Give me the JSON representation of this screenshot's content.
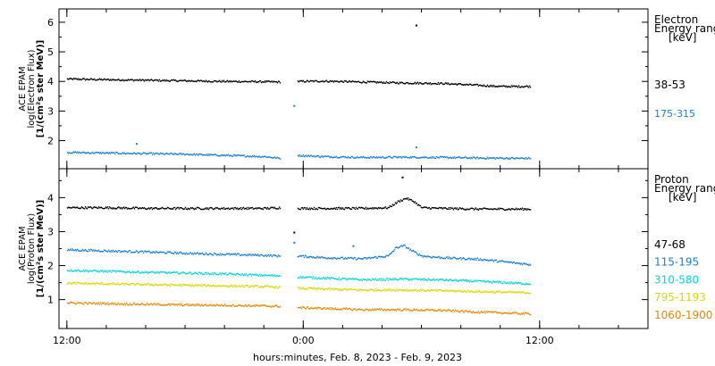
{
  "chart_data": [
    {
      "type": "scatter",
      "panel": "electron",
      "ylabel_lines": [
        "ACE EPAM",
        "log(Electron Flux)",
        "[1/(cm²s ster MeV)]"
      ],
      "yticks": [
        2,
        3,
        4,
        5,
        6
      ],
      "ylim": [
        1.05,
        6.45
      ],
      "legend_header": [
        "Electron",
        "Energy ranges",
        "[keV]"
      ],
      "series": [
        {
          "name": "38-53",
          "color": "#000000",
          "segments": [
            {
              "x": [
                0.0,
                2.0,
                4.0,
                6.0,
                8.0,
                10.0,
                10.8
              ],
              "y": [
                4.1,
                4.08,
                4.06,
                4.04,
                4.02,
                4.01,
                4.0
              ]
            },
            {
              "x": [
                11.7,
                13.0,
                15.0,
                17.0,
                19.0,
                20.0,
                22.0,
                23.5
              ],
              "y": [
                4.02,
                4.03,
                4.0,
                3.97,
                3.95,
                3.92,
                3.85,
                3.85
              ]
            }
          ],
          "outliers": {
            "x": [
              17.7
            ],
            "y": [
              5.92
            ]
          }
        },
        {
          "name": "175-315",
          "color": "#1a7fd4",
          "segments": [
            {
              "x": [
                0.0,
                2.0,
                4.0,
                6.0,
                8.0,
                10.0,
                10.8
              ],
              "y": [
                1.62,
                1.6,
                1.58,
                1.56,
                1.52,
                1.48,
                1.42
              ]
            },
            {
              "x": [
                11.7,
                13.0,
                15.0,
                17.0,
                19.0,
                21.0,
                23.5
              ],
              "y": [
                1.52,
                1.48,
                1.45,
                1.46,
                1.45,
                1.43,
                1.42
              ]
            }
          ],
          "outliers": {
            "x": [
              3.5,
              11.5,
              17.7
            ],
            "y": [
              1.92,
              3.2,
              1.8
            ]
          }
        }
      ]
    },
    {
      "type": "scatter",
      "panel": "proton",
      "ylabel_lines": [
        "ACE EPAM",
        "log(Proton Flux)",
        "[1/(cm²s ster MeV)]"
      ],
      "yticks": [
        1,
        2,
        3,
        4
      ],
      "ylim": [
        0.15,
        4.85
      ],
      "legend_header": [
        "Proton",
        "Energy ranges",
        "[keV]"
      ],
      "series": [
        {
          "name": "47-68",
          "color": "#000000",
          "segments": [
            {
              "x": [
                0.0,
                2.0,
                4.0,
                6.0,
                8.0,
                10.0,
                10.8
              ],
              "y": [
                3.72,
                3.72,
                3.7,
                3.7,
                3.7,
                3.7,
                3.72
              ]
            },
            {
              "x": [
                11.7,
                13.0,
                15.0,
                16.3,
                16.8,
                17.2,
                17.6,
                18.0,
                19.0,
                21.0,
                23.5
              ],
              "y": [
                3.7,
                3.7,
                3.7,
                3.72,
                3.9,
                4.0,
                3.9,
                3.72,
                3.7,
                3.68,
                3.68
              ]
            }
          ],
          "outliers": {
            "x": [
              11.5,
              17.0
            ],
            "y": [
              3.0,
              4.62
            ]
          }
        },
        {
          "name": "115-195",
          "color": "#1a7fd4",
          "segments": [
            {
              "x": [
                0.0,
                2.0,
                4.0,
                6.0,
                8.0,
                10.0,
                10.8
              ],
              "y": [
                2.48,
                2.45,
                2.42,
                2.38,
                2.35,
                2.32,
                2.3
              ]
            },
            {
              "x": [
                11.7,
                13.0,
                15.0,
                16.3,
                16.7,
                17.1,
                17.5,
                18.0,
                19.0,
                21.0,
                23.5
              ],
              "y": [
                2.3,
                2.25,
                2.22,
                2.3,
                2.55,
                2.6,
                2.45,
                2.3,
                2.25,
                2.2,
                2.05
              ]
            }
          ],
          "outliers": {
            "x": [
              11.5,
              14.5
            ],
            "y": [
              2.7,
              2.6
            ]
          }
        },
        {
          "name": "310-580",
          "color": "#00d8d8",
          "segments": [
            {
              "x": [
                0.0,
                2.0,
                4.0,
                6.0,
                8.0,
                10.0,
                10.8
              ],
              "y": [
                1.88,
                1.85,
                1.82,
                1.8,
                1.77,
                1.73,
                1.72
              ]
            },
            {
              "x": [
                11.7,
                13.0,
                15.0,
                17.0,
                19.0,
                21.0,
                23.5
              ],
              "y": [
                1.68,
                1.65,
                1.6,
                1.62,
                1.6,
                1.55,
                1.48
              ]
            }
          ],
          "outliers": {
            "x": [],
            "y": []
          }
        },
        {
          "name": "795-1193",
          "color": "#d8d800",
          "segments": [
            {
              "x": [
                0.0,
                2.0,
                4.0,
                6.0,
                8.0,
                10.0,
                10.8
              ],
              "y": [
                1.5,
                1.48,
                1.46,
                1.44,
                1.42,
                1.4,
                1.38
              ]
            },
            {
              "x": [
                11.7,
                13.0,
                15.0,
                17.0,
                19.0,
                21.0,
                23.5
              ],
              "y": [
                1.35,
                1.33,
                1.3,
                1.3,
                1.28,
                1.25,
                1.22
              ]
            }
          ],
          "outliers": {
            "x": [],
            "y": []
          }
        },
        {
          "name": "1060-1900",
          "color": "#e68a00",
          "segments": [
            {
              "x": [
                0.0,
                2.0,
                4.0,
                6.0,
                8.0,
                10.0,
                10.8
              ],
              "y": [
                0.92,
                0.9,
                0.88,
                0.86,
                0.85,
                0.83,
                0.82
              ]
            },
            {
              "x": [
                11.7,
                13.0,
                15.0,
                17.0,
                19.0,
                21.0,
                23.5
              ],
              "y": [
                0.78,
                0.76,
                0.72,
                0.72,
                0.7,
                0.65,
                0.6
              ]
            }
          ],
          "outliers": {
            "x": [],
            "y": []
          }
        }
      ]
    }
  ],
  "x_axis": {
    "ticks": [
      {
        "x": 0,
        "label": "12:00"
      },
      {
        "x": 12,
        "label": "0:00"
      },
      {
        "x": 24,
        "label": "12:00"
      }
    ],
    "minor_ticks_every_hours": 2,
    "xlim": [
      -0.4,
      29.5
    ],
    "label": "hours:minutes, Feb.  8, 2023 - Feb.  9, 2023"
  }
}
